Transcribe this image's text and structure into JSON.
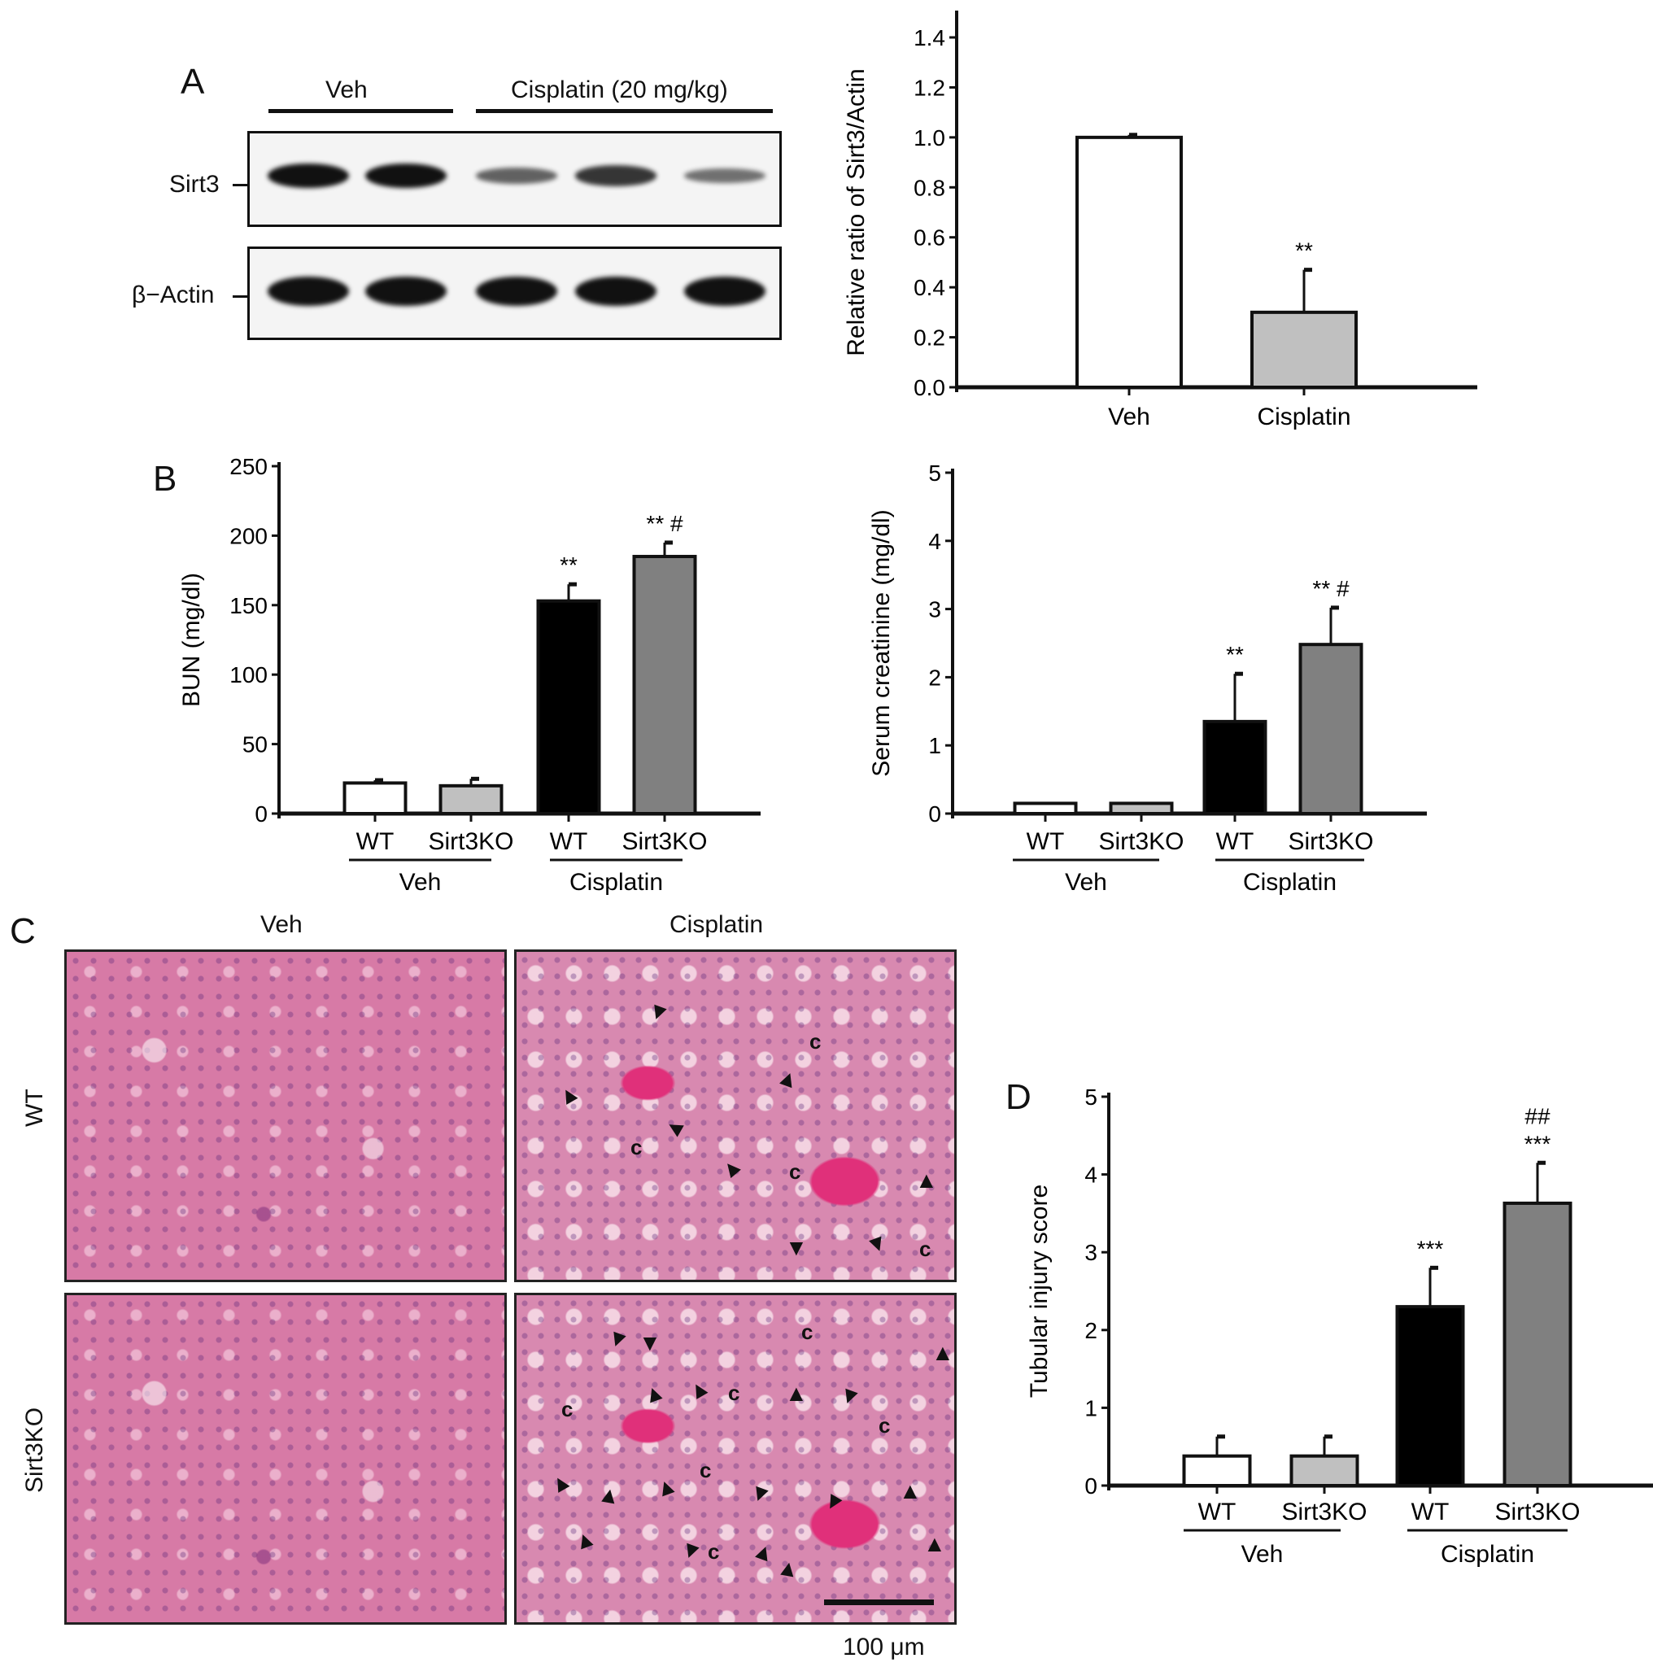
{
  "panel_labels": {
    "a": "A",
    "b": "B",
    "c": "C",
    "d": "D"
  },
  "western_blot": {
    "groups": [
      "Veh",
      "Cisplatin (20 mg/kg)"
    ],
    "rows": [
      "Sirt3",
      "β−Actin"
    ],
    "sirt3_band_intensity": [
      1.0,
      1.0,
      0.45,
      0.75,
      0.35
    ],
    "actin_band_intensity": [
      1.0,
      1.0,
      1.0,
      1.0,
      1.0
    ]
  },
  "histology": {
    "columns": [
      "Veh",
      "Cisplatin"
    ],
    "rows": [
      "WT",
      "Sirt3KO"
    ],
    "cast_label": "c",
    "scale_bar": "100 μm",
    "tissue_color": "#d77aa6"
  },
  "chart_data": [
    {
      "type": "bar",
      "panel": "A",
      "ylabel": "Relative ratio of Sirt3/Actin",
      "ylim": [
        0,
        1.4
      ],
      "yticks": [
        "0.0",
        "0.2",
        "0.4",
        "0.6",
        "0.8",
        "1.0",
        "1.2",
        "1.4"
      ],
      "categories": [
        "Veh",
        "Cisplatin"
      ],
      "values": [
        1.0,
        0.3
      ],
      "errors": [
        0.01,
        0.17
      ],
      "annotations": [
        "",
        "**"
      ],
      "colors": [
        "#ffffff",
        "#c0c0c0"
      ],
      "groups": []
    },
    {
      "type": "bar",
      "panel": "B",
      "ylabel": "BUN (mg/dl)",
      "ylim": [
        0,
        250
      ],
      "yticks": [
        "0",
        "50",
        "100",
        "150",
        "200",
        "250"
      ],
      "categories": [
        "WT",
        "Sirt3KO",
        "WT",
        "Sirt3KO"
      ],
      "values": [
        22,
        20,
        153,
        185
      ],
      "errors": [
        2,
        5,
        12,
        10
      ],
      "annotations": [
        "",
        "",
        "**",
        "** #"
      ],
      "colors": [
        "#ffffff",
        "#c0c0c0",
        "#000000",
        "#808080"
      ],
      "groups": [
        "Veh",
        "Cisplatin"
      ]
    },
    {
      "type": "bar",
      "panel": "B",
      "ylabel": "Serum creatinine (mg/dl)",
      "ylim": [
        0,
        5
      ],
      "yticks": [
        "0",
        "1",
        "2",
        "3",
        "4",
        "5"
      ],
      "categories": [
        "WT",
        "Sirt3KO",
        "WT",
        "Sirt3KO"
      ],
      "values": [
        0.15,
        0.15,
        1.35,
        2.48
      ],
      "errors": [
        0,
        0,
        0.7,
        0.54
      ],
      "annotations": [
        "",
        "",
        "**",
        "** #"
      ],
      "colors": [
        "#ffffff",
        "#c0c0c0",
        "#000000",
        "#808080"
      ],
      "groups": [
        "Veh",
        "Cisplatin"
      ]
    },
    {
      "type": "bar",
      "panel": "D",
      "ylabel": "Tubular injury score",
      "ylim": [
        0,
        5
      ],
      "yticks": [
        "0",
        "1",
        "2",
        "3",
        "4",
        "5"
      ],
      "categories": [
        "WT",
        "Sirt3KO",
        "WT",
        "Sirt3KO"
      ],
      "values": [
        0.38,
        0.38,
        2.3,
        3.63
      ],
      "errors": [
        0.25,
        0.25,
        0.5,
        0.52
      ],
      "annotations": [
        "",
        "",
        "***",
        "##\n***"
      ],
      "colors": [
        "#ffffff",
        "#c0c0c0",
        "#000000",
        "#808080"
      ],
      "groups": [
        "Veh",
        "Cisplatin"
      ]
    }
  ]
}
